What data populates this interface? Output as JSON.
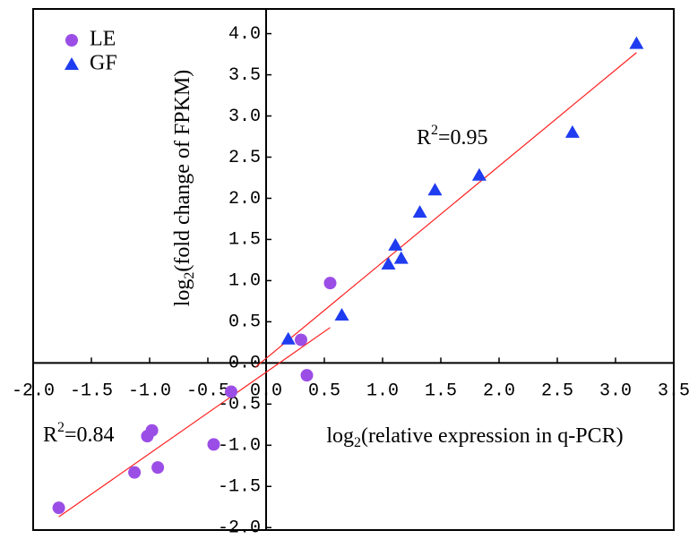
{
  "chart_data": {
    "type": "scatter",
    "x_label": {
      "base": "log",
      "sub": "2",
      "rest": "(relative expression in q-PCR)"
    },
    "y_label": {
      "base": "log",
      "sub": "2",
      "rest": "(fold change of FPKM)"
    },
    "xlim": [
      -2.0,
      3.5
    ],
    "ylim": [
      -2.03,
      4.3
    ],
    "xticks": [
      {
        "value": -2,
        "label": "-2.0"
      },
      -1.5,
      {
        "value": -1,
        "label": "-1.0"
      },
      -0.5,
      {
        "value": 0,
        "label": "0.0"
      },
      0.5,
      {
        "value": 1,
        "label": "1.0"
      },
      1.5,
      {
        "value": 2,
        "label": "2.0"
      },
      2.5,
      {
        "value": 3,
        "label": "3.0"
      },
      3.5
    ],
    "yticks": [
      {
        "value": -2,
        "label": "-2.0"
      },
      -1.5,
      {
        "value": -1,
        "label": "-1.0"
      },
      -0.5,
      {
        "value": 0,
        "label": "0.0"
      },
      0.5,
      {
        "value": 1,
        "label": "1.0"
      },
      1.5,
      {
        "value": 2,
        "label": "2.0"
      },
      2.5,
      {
        "value": 3,
        "label": "3.0"
      },
      3.5,
      {
        "value": 4,
        "label": "4.0"
      }
    ],
    "legend": "top-left",
    "series": [
      {
        "name": "LE",
        "color": "#9b4ee6",
        "marker": "circle",
        "x": [
          -1.78,
          -1.13,
          -0.93,
          -1.02,
          -0.98,
          -0.45,
          -0.3,
          0.3,
          0.35,
          0.55
        ],
        "y": [
          -1.76,
          -1.33,
          -1.27,
          -0.89,
          -0.82,
          -0.99,
          -0.35,
          0.28,
          -0.15,
          0.97
        ],
        "fit": {
          "x": [
            -1.78,
            0.55
          ],
          "y": [
            -1.87,
            0.43
          ]
        },
        "r2": {
          "base": "R",
          "sup": "2",
          "rest": "=0.84"
        }
      },
      {
        "name": "GF",
        "color": "#1f3cf0",
        "marker": "triangle",
        "x": [
          0.19,
          0.65,
          1.05,
          1.16,
          1.11,
          1.32,
          1.45,
          1.83,
          2.63,
          3.18
        ],
        "y": [
          0.29,
          0.58,
          1.2,
          1.27,
          1.43,
          1.83,
          2.1,
          2.28,
          2.8,
          3.88
        ],
        "fit": {
          "x": [
            -0.09,
            3.18
          ],
          "y": [
            -0.05,
            3.77
          ]
        },
        "r2": {
          "base": "R",
          "sup": "2",
          "rest": "=0.95"
        }
      }
    ]
  }
}
